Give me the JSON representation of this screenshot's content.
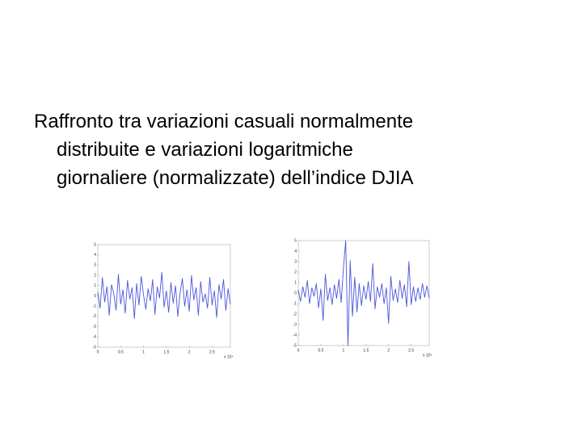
{
  "text": {
    "lines": [
      "Raffronto tra variazioni casuali normalmente",
      "distribuite e variazioni logaritmiche",
      "giornaliere (normalizzate) dell’indice DJIA"
    ]
  },
  "chart_data": [
    {
      "type": "line",
      "x_multiplier": "x 10⁴",
      "x": [
        0,
        0.05,
        0.1,
        0.15,
        0.2,
        0.25,
        0.3,
        0.35,
        0.4,
        0.45,
        0.5,
        0.55,
        0.6,
        0.65,
        0.7,
        0.75,
        0.8,
        0.85,
        0.9,
        0.95,
        1,
        1.05,
        1.1,
        1.15,
        1.2,
        1.25,
        1.3,
        1.35,
        1.4,
        1.45,
        1.5,
        1.55,
        1.6,
        1.65,
        1.7,
        1.75,
        1.8,
        1.85,
        1.9,
        1.95,
        2,
        2.05,
        2.1,
        2.15,
        2.2,
        2.25,
        2.3,
        2.35,
        2.4,
        2.45,
        2.5,
        2.55,
        2.6,
        2.65,
        2.7,
        2.75,
        2.8,
        2.85,
        2.9
      ],
      "values": [
        0.4,
        -1.2,
        1.8,
        -0.6,
        0.9,
        -1.9,
        1.1,
        0.2,
        -1.4,
        2.1,
        -0.8,
        0.6,
        -1.7,
        1.5,
        -0.3,
        0.8,
        -2.2,
        1.2,
        -0.9,
        1.9,
        0.1,
        -1.3,
        0.7,
        -0.5,
        1.6,
        -1.8,
        0.9,
        -0.2,
        2.3,
        -1.1,
        0.5,
        -1.6,
        1.3,
        -0.7,
        1.0,
        -2.0,
        0.3,
        1.7,
        -1.0,
        0.6,
        -1.5,
        2.0,
        -0.4,
        0.8,
        -1.9,
        1.4,
        -0.6,
        0.2,
        -1.2,
        1.8,
        -0.9,
        0.5,
        -2.1,
        1.1,
        -0.3,
        1.6,
        -1.4,
        0.7,
        -0.8
      ],
      "color": "#4b55dc",
      "xlim": [
        0,
        2.9
      ],
      "ylim": [
        -5,
        5
      ],
      "xticks": [
        0,
        0.5,
        1,
        1.5,
        2,
        2.5
      ],
      "yticks": [
        -5,
        -4,
        -3,
        -2,
        -1,
        0,
        1,
        2,
        3,
        4,
        5
      ]
    },
    {
      "type": "line",
      "x_multiplier": "x 10⁴",
      "x": [
        0,
        0.05,
        0.1,
        0.15,
        0.2,
        0.25,
        0.3,
        0.35,
        0.4,
        0.45,
        0.5,
        0.55,
        0.6,
        0.65,
        0.7,
        0.75,
        0.8,
        0.85,
        0.9,
        0.95,
        1,
        1.05,
        1.1,
        1.15,
        1.2,
        1.25,
        1.3,
        1.35,
        1.4,
        1.45,
        1.5,
        1.55,
        1.6,
        1.65,
        1.7,
        1.75,
        1.8,
        1.85,
        1.9,
        1.95,
        2,
        2.05,
        2.1,
        2.15,
        2.2,
        2.25,
        2.3,
        2.35,
        2.4,
        2.45,
        2.5,
        2.55,
        2.6,
        2.65,
        2.7,
        2.75,
        2.8,
        2.85,
        2.9
      ],
      "values": [
        0.3,
        -0.8,
        0.6,
        -0.4,
        1.2,
        -1.0,
        0.5,
        -0.3,
        0.9,
        -1.4,
        0.4,
        -2.6,
        1.8,
        -0.7,
        0.5,
        -1.1,
        0.8,
        -0.5,
        1.3,
        -0.9,
        2.4,
        5.0,
        -5.0,
        3.1,
        -2.2,
        1.5,
        -1.8,
        0.9,
        -1.2,
        0.7,
        -0.6,
        1.1,
        -0.8,
        2.8,
        -1.5,
        0.6,
        -0.4,
        0.9,
        -1.0,
        0.5,
        -2.9,
        1.6,
        -0.7,
        0.4,
        -0.9,
        1.2,
        -0.5,
        0.8,
        -1.3,
        3.0,
        -1.1,
        0.6,
        -0.8,
        0.5,
        -0.6,
        0.9,
        -0.4,
        0.7,
        -0.5
      ],
      "color": "#4b55dc",
      "xlim": [
        0,
        2.9
      ],
      "ylim": [
        -5,
        5
      ],
      "xticks": [
        0,
        0.5,
        1,
        1.5,
        2,
        2.5
      ],
      "yticks": [
        -5,
        -4,
        -3,
        -2,
        -1,
        0,
        1,
        2,
        3,
        4,
        5
      ]
    }
  ]
}
